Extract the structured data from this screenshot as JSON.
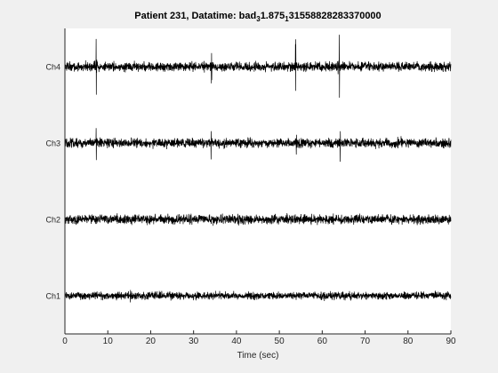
{
  "chart_data": {
    "type": "line",
    "title": {
      "parts": [
        {
          "text": "Patient 231, Datatime: bad",
          "sub": false
        },
        {
          "text": "3",
          "sub": true
        },
        {
          "text": "1.875",
          "sub": false
        },
        {
          "text": "1",
          "sub": true
        },
        {
          "text": "31558828283370000",
          "sub": false
        }
      ]
    },
    "xlabel": "Time (sec)",
    "xlim": [
      0,
      90
    ],
    "x_ticks": [
      "0",
      "10",
      "20",
      "30",
      "40",
      "50",
      "60",
      "70",
      "80",
      "90"
    ],
    "y_ticks": [
      "Ch1",
      "Ch2",
      "Ch3",
      "Ch4"
    ],
    "grid": false,
    "series": [
      {
        "name": "Ch1",
        "noise": 0.08,
        "spikes": [
          {
            "t": 15.3,
            "amp": 0.18
          },
          {
            "t": 60.5,
            "amp": 0.1
          }
        ]
      },
      {
        "name": "Ch2",
        "noise": 0.1,
        "spikes": []
      },
      {
        "name": "Ch3",
        "noise": 0.1,
        "spikes": [
          {
            "t": 7.3,
            "amp": 0.55
          },
          {
            "t": 34.1,
            "amp": 0.4
          },
          {
            "t": 54.0,
            "amp": 0.3
          },
          {
            "t": 64.2,
            "amp": 0.45
          },
          {
            "t": 78.4,
            "amp": 0.15
          }
        ]
      },
      {
        "name": "Ch4",
        "noise": 0.1,
        "spikes": [
          {
            "t": 7.3,
            "amp": 0.92
          },
          {
            "t": 32.5,
            "amp": 0.18
          },
          {
            "t": 34.2,
            "amp": 0.5
          },
          {
            "t": 53.8,
            "amp": 0.75
          },
          {
            "t": 64.0,
            "amp": 0.88
          }
        ]
      }
    ],
    "colors": {
      "figure_bg": "#f0f0f0",
      "axes_bg": "#ffffff",
      "trace": "#000000",
      "text": "#262626"
    }
  }
}
